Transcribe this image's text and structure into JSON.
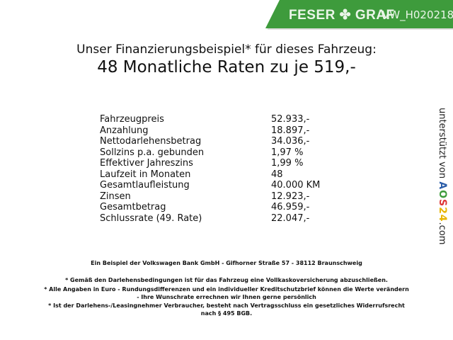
{
  "header": {
    "brand": "FESER ✤ GRAF",
    "code": "VW_H020218",
    "brand_color": "#3e9b3c"
  },
  "title": {
    "line1": "Unser Finanzierungsbeispiel* für dieses Fahrzeug:",
    "line2": "48 Monatliche Raten zu je 519,-"
  },
  "rows": [
    {
      "label": "Fahrzeugpreis",
      "value": "52.933,-"
    },
    {
      "label": "Anzahlung",
      "value": "18.897,-"
    },
    {
      "label": "Nettodarlehensbetrag",
      "value": "34.036,-"
    },
    {
      "label": "Sollzins p.a. gebunden",
      "value": "1,97 %"
    },
    {
      "label": "Effektiver Jahreszins",
      "value": "1,99 %"
    },
    {
      "label": "Laufzeit in Monaten",
      "value": "48"
    },
    {
      "label": "Gesamtlaufleistung",
      "value": "40.000 KM"
    },
    {
      "label": "Zinsen",
      "value": "12.923,-"
    },
    {
      "label": "Gesamtbetrag",
      "value": "46.959,-"
    },
    {
      "label": "Schlussrate (49. Rate)",
      "value": "22.047,-"
    }
  ],
  "side": {
    "prefix": "unterstützt von",
    "logo": "AOS24",
    "suffix": ".com"
  },
  "footer": {
    "bank": "Ein Beispiel der Volkswagen Bank GmbH - Gifhorner Straße 57 - 38112 Braunschweig",
    "note1": "* Gemäß den Darlehensbedingungen ist für das Fahrzeug eine Vollkaskoversicherung abzuschließen.",
    "note2a": "* Alle Angaben in Euro - Rundungsdifferenzen und ein individueller Kreditschutzbrief können die Werte verändern",
    "note2b": "- Ihre Wunschrate errechnen wir Ihnen gerne persönlich",
    "note3a": "* Ist der Darlehens-/Leasingnehmer Verbraucher, besteht nach Vertragsschluss ein gesetzliches Widerrufsrecht",
    "note3b": "nach § 495 BGB."
  }
}
